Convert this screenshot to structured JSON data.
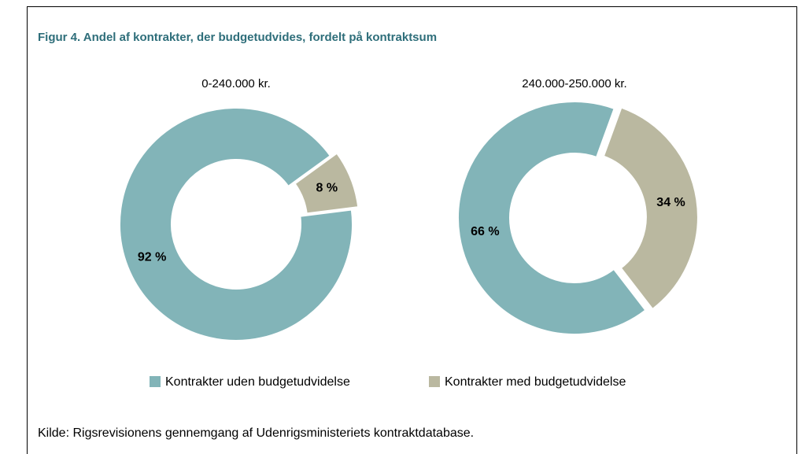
{
  "title": "Figur 4. Andel af kontrakter, der budgetudvides, fordelt på kontraktsum",
  "source": "Kilde:  Rigsrevisionens gennemgang af Udenrigsministeriets kontraktdatabase.",
  "chart_data": [
    {
      "type": "pie",
      "subtitle": "0-240.000 kr.",
      "categories": [
        "Kontrakter uden budgetudvidelse",
        "Kontrakter med budgetudvidelse"
      ],
      "values": [
        92,
        8
      ],
      "value_labels": [
        "92 %",
        "8 %"
      ],
      "colors": [
        "#82b4b8",
        "#bab8a0"
      ]
    },
    {
      "type": "pie",
      "subtitle": "240.000-250.000 kr.",
      "categories": [
        "Kontrakter uden budgetudvidelse",
        "Kontrakter med budgetudvidelse"
      ],
      "values": [
        66,
        34
      ],
      "value_labels": [
        "66 %",
        "34 %"
      ],
      "colors": [
        "#82b4b8",
        "#bab8a0"
      ]
    }
  ]
}
